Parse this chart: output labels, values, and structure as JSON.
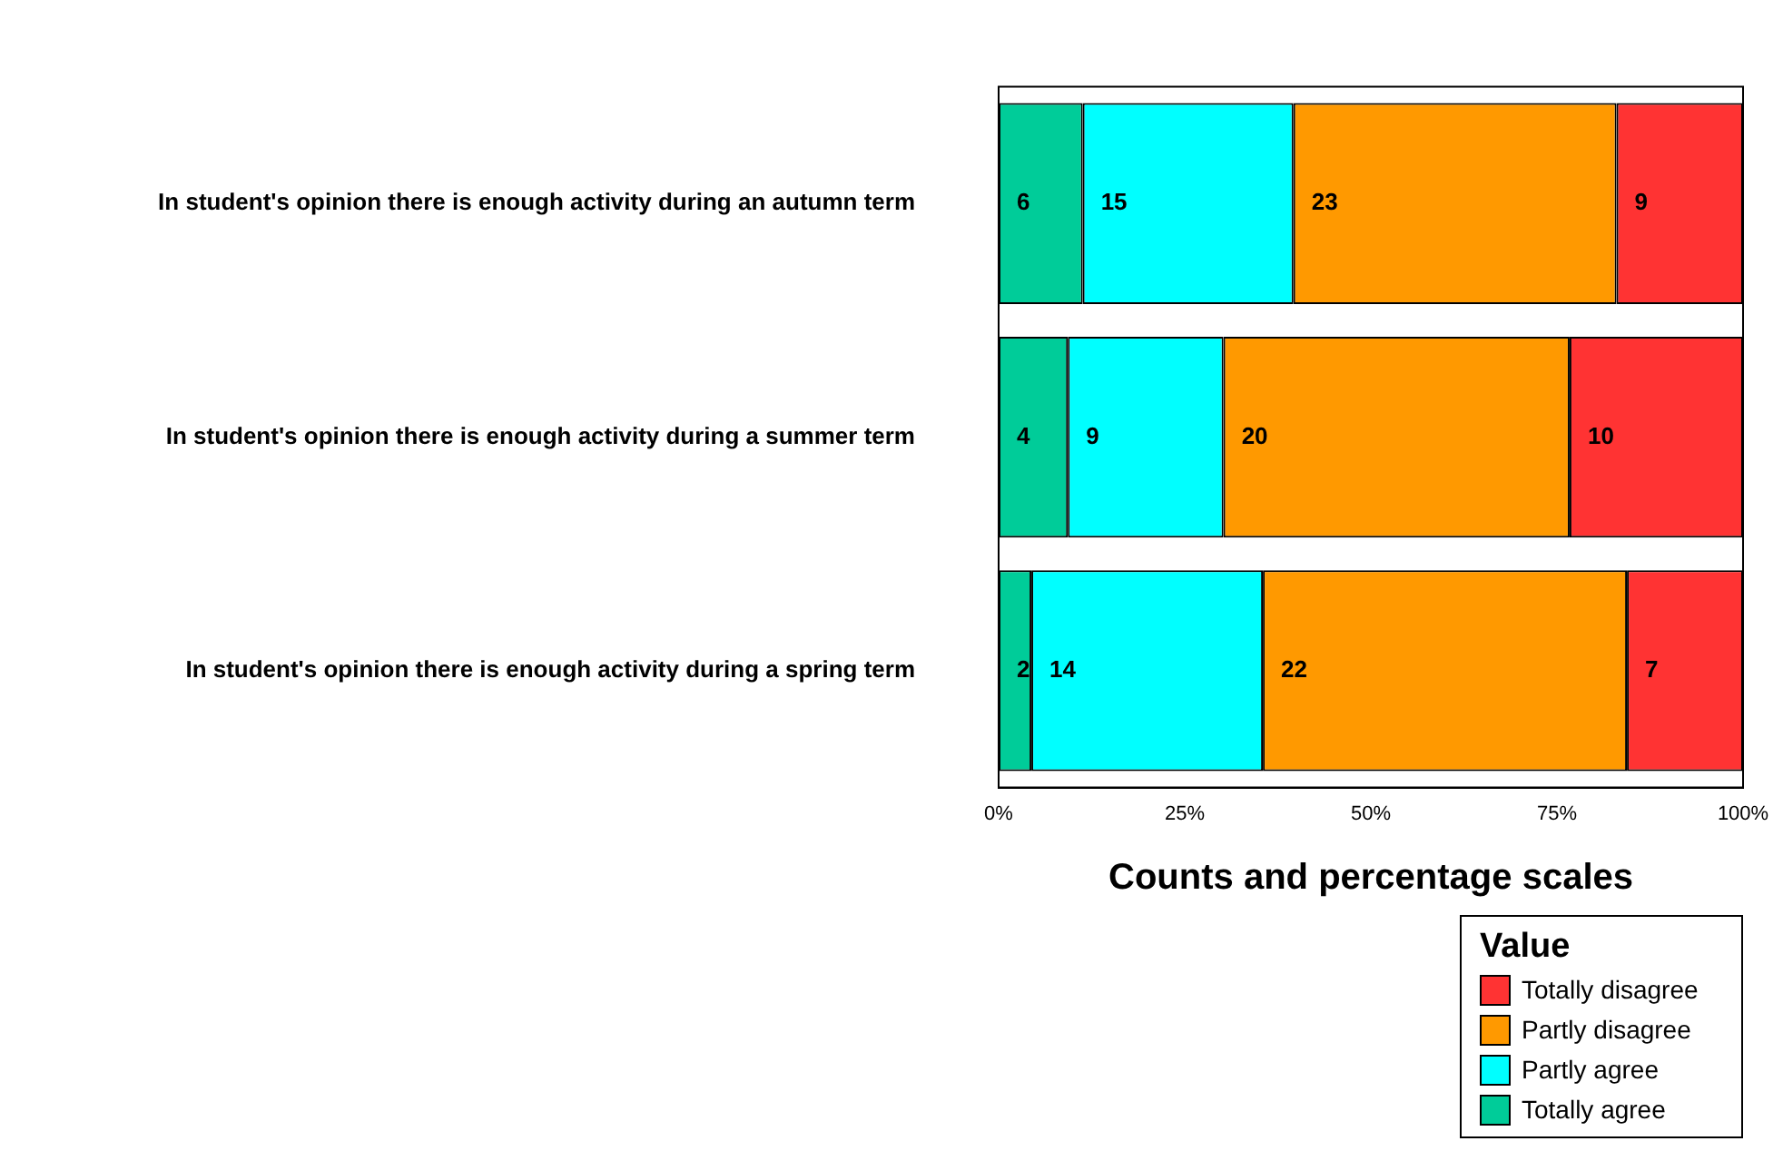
{
  "chart_data": {
    "type": "bar",
    "orientation": "horizontal",
    "stacked": true,
    "xlabel": "Counts and percentage scales",
    "legend_title": "Value",
    "legend": "bottom right",
    "grid": false,
    "categories": [
      "In student's opinion there is enough activity during an autumn term",
      "In student's opinion there is enough activity during a summer term",
      "In student's opinion there is enough activity during a spring term"
    ],
    "xlim": [
      0,
      100
    ],
    "xticks": [
      {
        "value": 0,
        "label": "0%"
      },
      {
        "value": 25,
        "label": "25%"
      },
      {
        "value": 50,
        "label": "50%"
      },
      {
        "value": 75,
        "label": "75%"
      },
      {
        "value": 100,
        "label": "100%"
      }
    ],
    "series": [
      {
        "name": "Totally agree",
        "color": "#00cc99",
        "values": [
          11.3,
          9.3,
          4.4
        ]
      },
      {
        "name": "Partly agree",
        "color": "#00ffff",
        "values": [
          28.3,
          20.9,
          31.1
        ]
      },
      {
        "name": "Partly disagree",
        "color": "#ff9900",
        "values": [
          43.4,
          46.5,
          48.9
        ]
      },
      {
        "name": "Totally disagree",
        "color": "#ff3333",
        "values": [
          17.0,
          23.3,
          15.6
        ]
      }
    ],
    "annotations": [
      {
        "text": "6",
        "x": 0,
        "y": "In student's opinion there is enough activity during an autumn term"
      },
      {
        "text": "15",
        "x": 11.3,
        "y": "In student's opinion there is enough activity during an autumn term"
      },
      {
        "text": "23",
        "x": 39.6,
        "y": "In student's opinion there is enough activity during an autumn term"
      },
      {
        "text": "9",
        "x": 83.0,
        "y": "In student's opinion there is enough activity during an autumn term"
      },
      {
        "text": "4",
        "x": 0,
        "y": "In student's opinion there is enough activity during a summer term"
      },
      {
        "text": "9",
        "x": 9.3,
        "y": "In student's opinion there is enough activity during a summer term"
      },
      {
        "text": "20",
        "x": 30.2,
        "y": "In student's opinion there is enough activity during a summer term"
      },
      {
        "text": "10",
        "x": 76.7,
        "y": "In student's opinion there is enough activity during a summer term"
      },
      {
        "text": "2",
        "x": 0,
        "y": "In student's opinion there is enough activity during a spring term"
      },
      {
        "text": "14",
        "x": 4.4,
        "y": "In student's opinion there is enough activity during a spring term"
      },
      {
        "text": "22",
        "x": 35.5,
        "y": "In student's opinion there is enough activity during a spring term"
      },
      {
        "text": "7",
        "x": 84.4,
        "y": "In student's opinion there is enough activity during a spring term"
      }
    ]
  }
}
